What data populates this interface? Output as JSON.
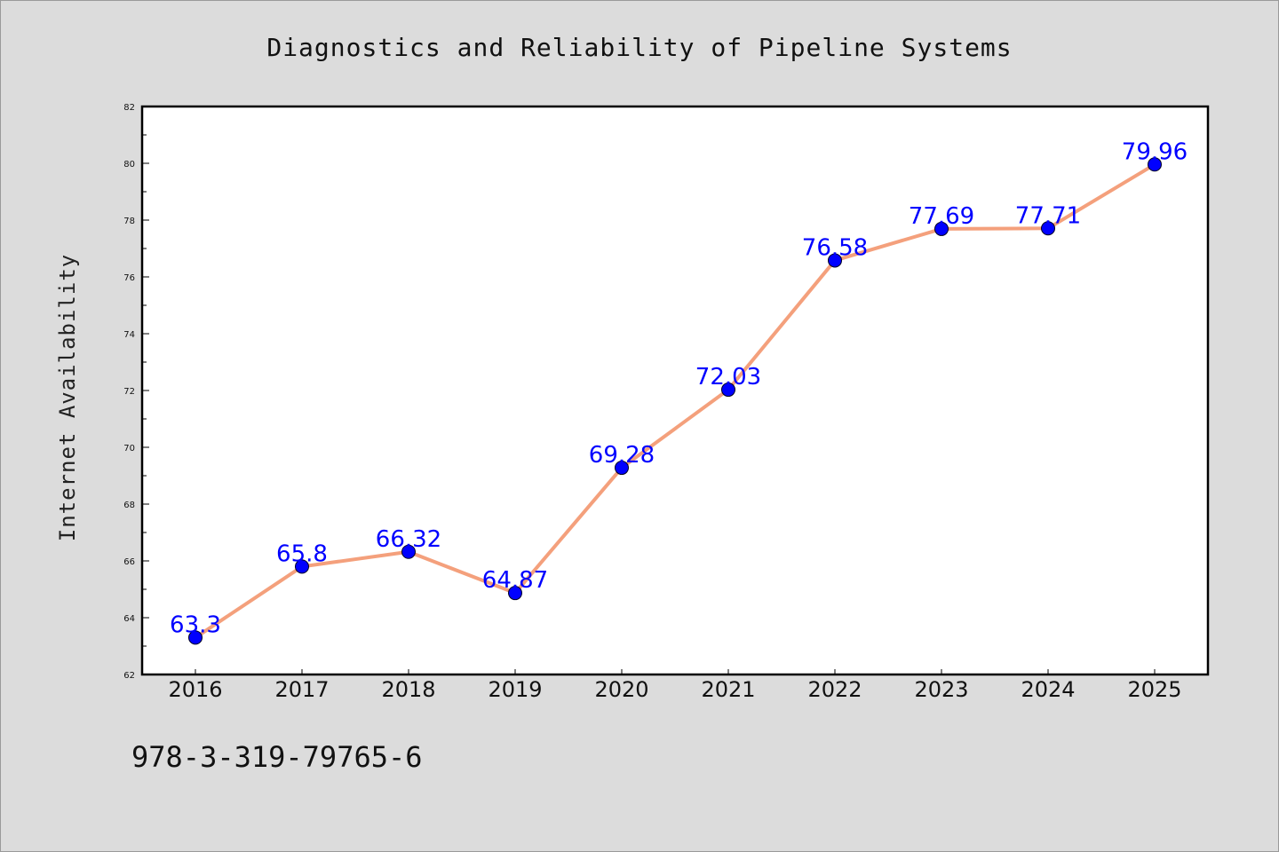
{
  "chart_data": {
    "type": "line",
    "title": "Diagnostics and Reliability of Pipeline Systems",
    "ylabel": "Internet Availability",
    "xlabel": "",
    "x": [
      "2016",
      "2017",
      "2018",
      "2019",
      "2020",
      "2021",
      "2022",
      "2023",
      "2024",
      "2025"
    ],
    "series": [
      {
        "values": [
          63.3,
          65.8,
          66.32,
          64.87,
          69.28,
          72.03,
          76.58,
          77.69,
          77.71,
          79.96
        ],
        "line_color": "#f4a07c",
        "marker_color": "#0000ff"
      }
    ],
    "data_labels": [
      "63.3",
      "65.8",
      "66.32",
      "64.87",
      "69.28",
      "72.03",
      "76.58",
      "77.69",
      "77.71",
      "79.96"
    ],
    "ylim": [
      62,
      82
    ],
    "yticks": [
      62,
      64,
      66,
      68,
      70,
      72,
      74,
      76,
      78,
      80,
      82
    ],
    "grid": false,
    "legend": "none"
  },
  "footer": {
    "isbn": "978-3-319-79765-6"
  }
}
